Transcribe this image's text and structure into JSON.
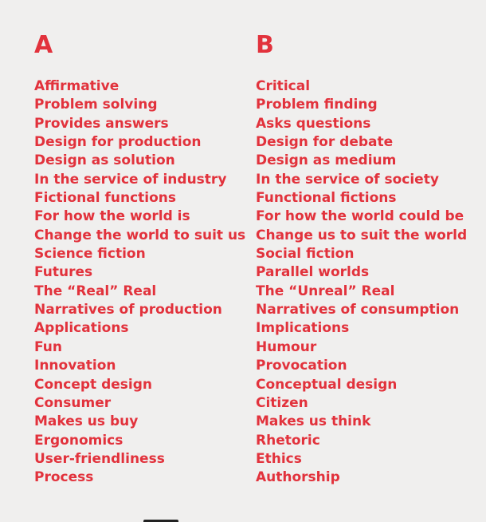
{
  "columns": [
    {
      "heading": "A",
      "items": [
        "Affirmative",
        "Problem solving",
        "Provides answers",
        "Design for production",
        "Design as solution",
        "In the service of industry",
        "Fictional functions",
        "For how the world is",
        "Change the world to suit us",
        "Science fiction",
        "Futures",
        "The “Real” Real",
        "Narratives of production",
        "Applications",
        "Fun",
        "Innovation",
        "Concept design",
        "Consumer",
        "Makes us buy",
        "Ergonomics",
        "User-friendliness",
        "Process"
      ]
    },
    {
      "heading": "B",
      "items": [
        "Critical",
        "Problem finding",
        "Asks questions",
        "Design for debate",
        "Design as medium",
        "In the service of society",
        "Functional fictions",
        "For how the world could be",
        "Change us to suit the world",
        "Social fiction",
        "Parallel worlds",
        "The “Unreal” Real",
        "Narratives of consumption",
        "Implications",
        "Humour",
        "Provocation",
        "Conceptual design",
        "Citizen",
        "Makes us think",
        "Rhetoric",
        "Ethics",
        "Authorship"
      ]
    }
  ],
  "colors": {
    "text": "#e2323c",
    "background": "#f0efee"
  }
}
